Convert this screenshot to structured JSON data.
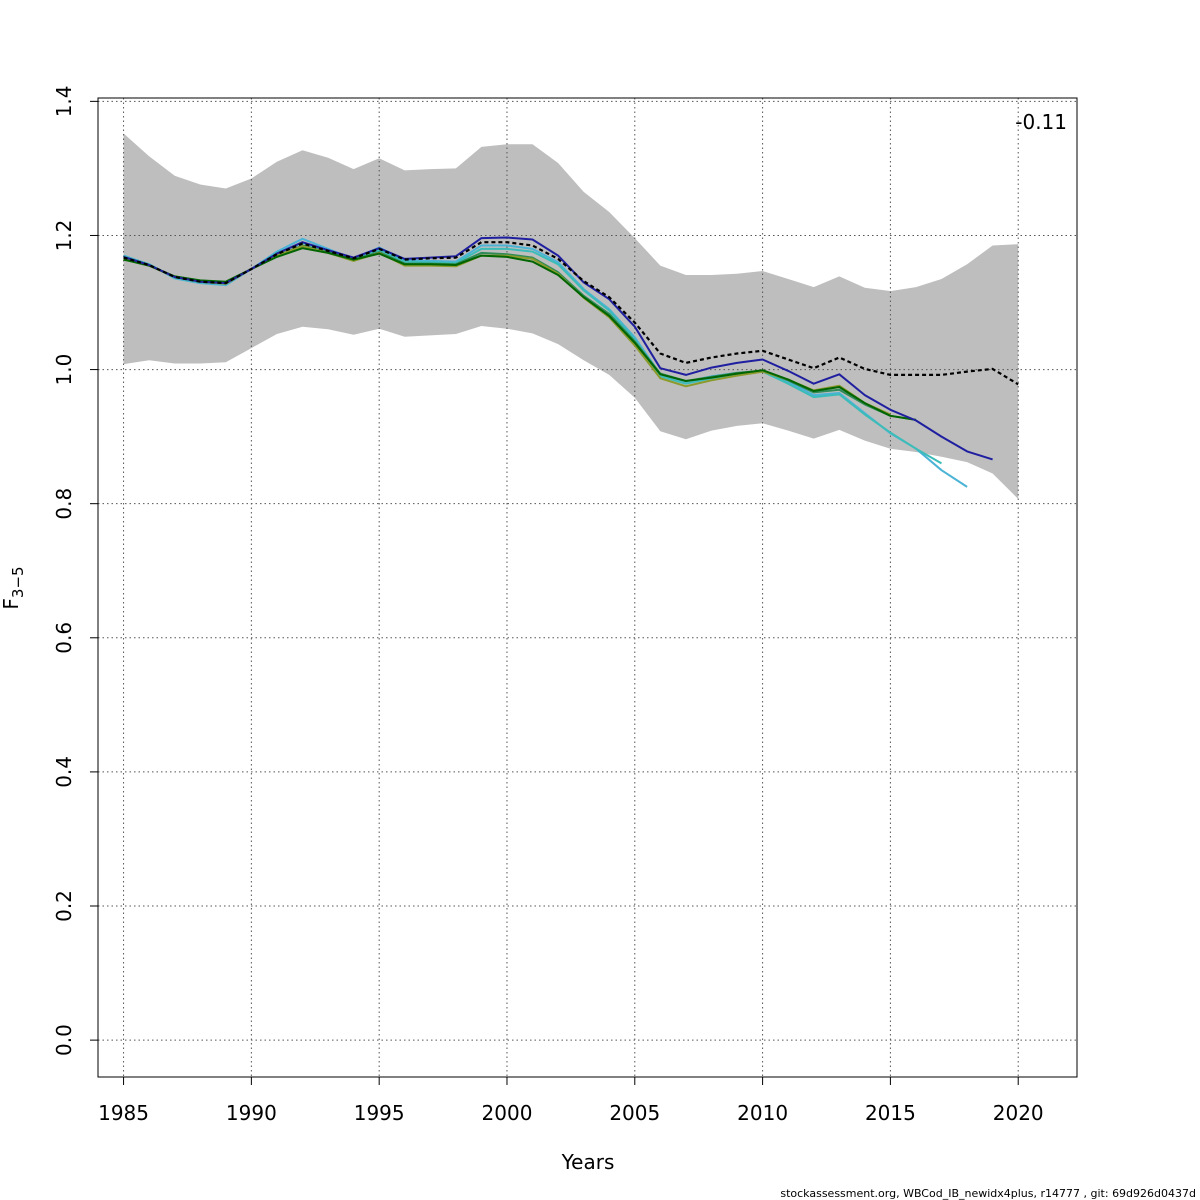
{
  "chart_data": {
    "type": "line",
    "xlabel": "Years",
    "ylabel_main": "F",
    "ylabel_sub": "3−5",
    "xlim": [
      1984,
      2022.3
    ],
    "ylim": [
      -0.055,
      1.405
    ],
    "x_ticks": [
      1985,
      1990,
      1995,
      2000,
      2005,
      2010,
      2015,
      2020
    ],
    "y_ticks": [
      0.0,
      0.2,
      0.4,
      0.6,
      0.8,
      1.0,
      1.2,
      1.4
    ],
    "y_tick_labels": [
      "0.0",
      "0.2",
      "0.4",
      "0.6",
      "0.8",
      "1.0",
      "1.2",
      "1.4"
    ],
    "grid": true,
    "rho_label": "-0.11",
    "footer": "stockassessment.org, WBCod_IB_newidx4plus, r14777 , git: 69d926d0437d",
    "band_color": "#bebebe",
    "confidence_band": {
      "x": [
        1985,
        1986,
        1987,
        1988,
        1989,
        1990,
        1991,
        1992,
        1993,
        1994,
        1995,
        1996,
        1997,
        1998,
        1999,
        2000,
        2001,
        2002,
        2003,
        2004,
        2005,
        2006,
        2007,
        2008,
        2009,
        2010,
        2011,
        2012,
        2013,
        2014,
        2015,
        2016,
        2017,
        2018,
        2019,
        2020
      ],
      "upper": [
        1.352,
        1.318,
        1.289,
        1.276,
        1.27,
        1.285,
        1.31,
        1.327,
        1.316,
        1.299,
        1.315,
        1.297,
        1.299,
        1.3,
        1.332,
        1.336,
        1.336,
        1.308,
        1.265,
        1.235,
        1.196,
        1.155,
        1.141,
        1.141,
        1.143,
        1.147,
        1.135,
        1.123,
        1.139,
        1.122,
        1.117,
        1.123,
        1.135,
        1.157,
        1.185,
        1.187
      ],
      "lower": [
        1.008,
        1.014,
        1.009,
        1.009,
        1.011,
        1.032,
        1.053,
        1.064,
        1.06,
        1.052,
        1.061,
        1.049,
        1.051,
        1.053,
        1.065,
        1.061,
        1.054,
        1.038,
        1.014,
        0.992,
        0.958,
        0.908,
        0.896,
        0.909,
        0.916,
        0.92,
        0.909,
        0.897,
        0.91,
        0.894,
        0.882,
        0.877,
        0.87,
        0.862,
        0.845,
        0.807
      ]
    },
    "series": [
      {
        "color": "#4ab3d6",
        "dashed": false,
        "x": [
          1985,
          1986,
          1987,
          1988,
          1989,
          1990,
          1991,
          1992,
          1993,
          1994,
          1995,
          1996,
          1997,
          1998,
          1999,
          2000,
          2001,
          2002,
          2003,
          2004,
          2005,
          2006,
          2007,
          2008,
          2009,
          2010,
          2011,
          2012,
          2013,
          2014,
          2015,
          2016,
          2017,
          2018
        ],
        "values": [
          1.17,
          1.157,
          1.136,
          1.129,
          1.126,
          1.15,
          1.176,
          1.195,
          1.18,
          1.165,
          1.182,
          1.163,
          1.162,
          1.161,
          1.185,
          1.185,
          1.18,
          1.16,
          1.12,
          1.09,
          1.048,
          0.993,
          0.982,
          0.99,
          0.995,
          0.998,
          0.982,
          0.962,
          0.965,
          0.935,
          0.905,
          0.882,
          0.85,
          0.825
        ]
      },
      {
        "color": "#3cbcb8",
        "dashed": false,
        "x": [
          1985,
          1986,
          1987,
          1988,
          1989,
          1990,
          1991,
          1992,
          1993,
          1994,
          1995,
          1996,
          1997,
          1998,
          1999,
          2000,
          2001,
          2002,
          2003,
          2004,
          2005,
          2006,
          2007,
          2008,
          2009,
          2010,
          2011,
          2012,
          2013,
          2014,
          2015,
          2016,
          2017
        ],
        "values": [
          1.169,
          1.157,
          1.137,
          1.13,
          1.128,
          1.15,
          1.174,
          1.189,
          1.177,
          1.165,
          1.178,
          1.161,
          1.16,
          1.159,
          1.18,
          1.18,
          1.176,
          1.157,
          1.118,
          1.088,
          1.045,
          0.99,
          0.979,
          0.987,
          0.993,
          0.997,
          0.979,
          0.959,
          0.963,
          0.933,
          0.906,
          0.882,
          0.86
        ]
      },
      {
        "color": "#2e8b57",
        "dashed": false,
        "x": [
          1985,
          1986,
          1987,
          1988,
          1989,
          1990,
          1991,
          1992,
          1993,
          1994,
          1995,
          1996,
          1997,
          1998,
          1999,
          2000,
          2001,
          2002,
          2003,
          2004,
          2005,
          2006,
          2007,
          2008,
          2009,
          2010,
          2011,
          2012,
          2013,
          2014,
          2015,
          2016
        ],
        "values": [
          1.166,
          1.155,
          1.139,
          1.132,
          1.13,
          1.15,
          1.17,
          1.185,
          1.175,
          1.164,
          1.175,
          1.158,
          1.158,
          1.157,
          1.174,
          1.172,
          1.167,
          1.145,
          1.11,
          1.083,
          1.042,
          0.994,
          0.983,
          0.989,
          0.995,
          0.998,
          0.984,
          0.966,
          0.97,
          0.948,
          0.931,
          0.925
        ]
      },
      {
        "color": "#8b9a2a",
        "dashed": false,
        "x": [
          1985,
          1986,
          1987,
          1988,
          1989,
          1990,
          1991,
          1992,
          1993,
          1994,
          1995,
          1996,
          1997,
          1998,
          1999,
          2000,
          2001,
          2002,
          2003,
          2004,
          2005,
          2006,
          2007,
          2008,
          2009,
          2010,
          2011,
          2012,
          2013,
          2014,
          2015
        ],
        "values": [
          1.165,
          1.155,
          1.138,
          1.131,
          1.128,
          1.15,
          1.17,
          1.184,
          1.174,
          1.162,
          1.174,
          1.155,
          1.155,
          1.154,
          1.17,
          1.17,
          1.165,
          1.143,
          1.107,
          1.078,
          1.036,
          0.987,
          0.975,
          0.984,
          0.991,
          0.997,
          0.985,
          0.969,
          0.976,
          0.95,
          0.933
        ]
      },
      {
        "color": "#006400",
        "dashed": false,
        "x": [
          1985,
          1986,
          1987,
          1988,
          1989,
          1990,
          1991,
          1992,
          1993,
          1994,
          1995,
          1996,
          1997,
          1998,
          1999,
          2000,
          2001,
          2002,
          2003,
          2004,
          2005,
          2006,
          2007,
          2008,
          2009,
          2010,
          2011,
          2012,
          2013,
          2014,
          2015,
          2016
        ],
        "values": [
          1.164,
          1.155,
          1.139,
          1.133,
          1.131,
          1.15,
          1.168,
          1.181,
          1.174,
          1.164,
          1.173,
          1.157,
          1.157,
          1.156,
          1.17,
          1.168,
          1.161,
          1.141,
          1.108,
          1.08,
          1.04,
          0.993,
          0.983,
          0.988,
          0.994,
          0.999,
          0.985,
          0.968,
          0.974,
          0.95,
          0.931,
          0.925
        ]
      },
      {
        "color": "#1f1fa0",
        "dashed": false,
        "x": [
          1985,
          1986,
          1987,
          1988,
          1989,
          1990,
          1991,
          1992,
          1993,
          1994,
          1995,
          1996,
          1997,
          1998,
          1999,
          2000,
          2001,
          2002,
          2003,
          2004,
          2005,
          2006,
          2007,
          2008,
          2009,
          2010,
          2011,
          2012,
          2013,
          2014,
          2015,
          2016,
          2017,
          2018,
          2019
        ],
        "values": [
          1.168,
          1.156,
          1.138,
          1.131,
          1.129,
          1.15,
          1.173,
          1.19,
          1.178,
          1.167,
          1.181,
          1.165,
          1.167,
          1.169,
          1.196,
          1.197,
          1.194,
          1.17,
          1.13,
          1.105,
          1.064,
          1.002,
          0.992,
          1.003,
          1.01,
          1.015,
          0.998,
          0.979,
          0.993,
          0.962,
          0.94,
          0.924,
          0.9,
          0.878,
          0.866
        ]
      },
      {
        "color": "#000000",
        "dashed": true,
        "x": [
          1985,
          1986,
          1987,
          1988,
          1989,
          1990,
          1991,
          1992,
          1993,
          1994,
          1995,
          1996,
          1997,
          1998,
          1999,
          2000,
          2001,
          2002,
          2003,
          2004,
          2005,
          2006,
          2007,
          2008,
          2009,
          2010,
          2011,
          2012,
          2013,
          2014,
          2015,
          2016,
          2017,
          2018,
          2019,
          2020
        ],
        "values": [
          1.167,
          1.156,
          1.138,
          1.131,
          1.129,
          1.15,
          1.172,
          1.188,
          1.177,
          1.166,
          1.18,
          1.164,
          1.166,
          1.167,
          1.19,
          1.19,
          1.185,
          1.165,
          1.132,
          1.108,
          1.07,
          1.024,
          1.01,
          1.018,
          1.024,
          1.028,
          1.015,
          1.002,
          1.018,
          1.001,
          0.992,
          0.992,
          0.992,
          0.997,
          1.001,
          0.978
        ]
      }
    ]
  }
}
